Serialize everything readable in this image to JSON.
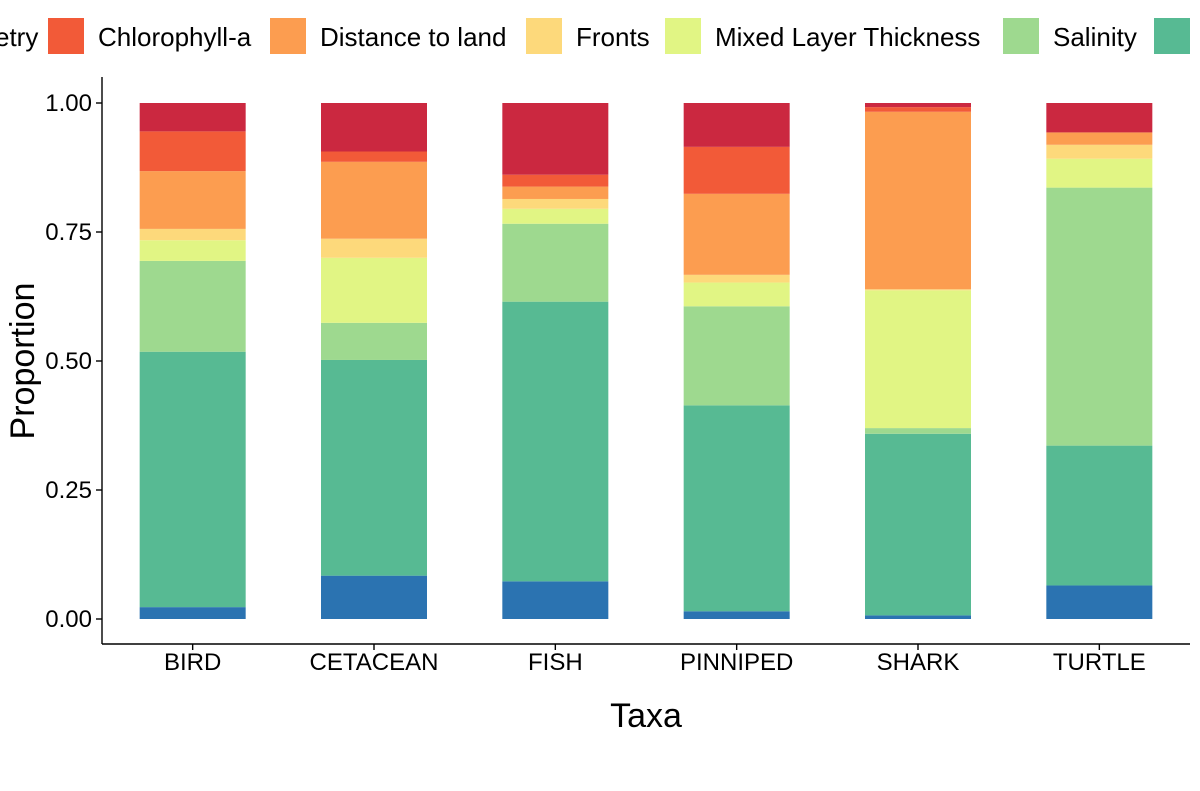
{
  "chart_data": {
    "type": "bar",
    "stacked": true,
    "xlabel": "Taxa",
    "ylabel": "Proportion",
    "ylim": [
      0,
      1
    ],
    "yticks": [
      "0.00",
      "0.25",
      "0.50",
      "0.75",
      "1.00"
    ],
    "categories": [
      "BIRD",
      "CETACEAN",
      "FISH",
      "PINNIPED",
      "SHARK",
      "TURTLE"
    ],
    "legend_position": "top",
    "legend_visible": [
      "etry",
      "Chlorophyll-a",
      "Distance to land",
      "Fronts",
      "Mixed Layer Thickness",
      "Salinity"
    ],
    "series": [
      {
        "color": "#2b73b1",
        "values": [
          0.023,
          0.084,
          0.073,
          0.015,
          0.007,
          0.065
        ]
      },
      {
        "color": "#57ba93",
        "values": [
          0.495,
          0.418,
          0.542,
          0.399,
          0.352,
          0.271
        ]
      },
      {
        "name": "Salinity",
        "color": "#9ed98f",
        "values": [
          0.176,
          0.072,
          0.151,
          0.192,
          0.011,
          0.5
        ]
      },
      {
        "name": "Mixed Layer Thickness",
        "color": "#e1f584",
        "values": [
          0.04,
          0.126,
          0.029,
          0.046,
          0.267,
          0.056
        ]
      },
      {
        "name": "Fronts",
        "color": "#fdd97b",
        "values": [
          0.022,
          0.037,
          0.019,
          0.015,
          0.002,
          0.027
        ]
      },
      {
        "name": "Distance to land",
        "color": "#fc9d50",
        "values": [
          0.112,
          0.149,
          0.024,
          0.157,
          0.344,
          0.024
        ]
      },
      {
        "name": "Chlorophyll-a",
        "color": "#f25a38",
        "values": [
          0.077,
          0.02,
          0.023,
          0.091,
          0.009,
          0.0
        ]
      },
      {
        "color": "#cb2840",
        "values": [
          0.055,
          0.094,
          0.139,
          0.085,
          0.008,
          0.057
        ]
      }
    ]
  }
}
